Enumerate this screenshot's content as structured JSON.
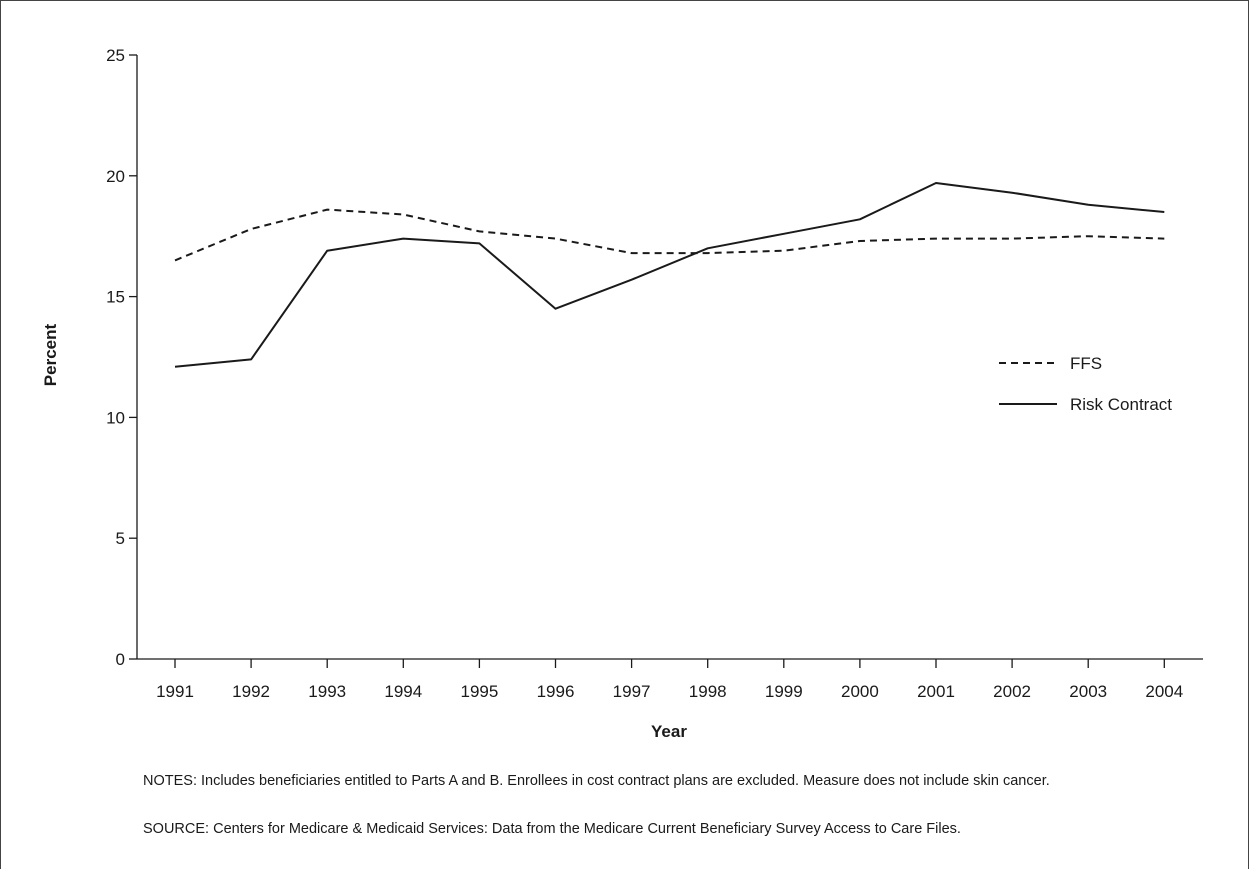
{
  "chart_data": {
    "type": "line",
    "xlabel": "Year",
    "ylabel": "Percent",
    "x": [
      "1991",
      "1992",
      "1993",
      "1994",
      "1995",
      "1996",
      "1997",
      "1998",
      "1999",
      "2000",
      "2001",
      "2002",
      "2003",
      "2004"
    ],
    "ylim": [
      0,
      25
    ],
    "yticks": [
      "0",
      "5",
      "10",
      "15",
      "20",
      "25"
    ],
    "grid": false,
    "legend_position": "right",
    "series": [
      {
        "name": "FFS",
        "style": "dashed",
        "color": "#1a1a1a",
        "values": [
          16.5,
          17.8,
          18.6,
          18.4,
          17.7,
          17.4,
          16.8,
          16.8,
          16.9,
          17.3,
          17.4,
          17.4,
          17.5,
          17.4
        ]
      },
      {
        "name": "Risk Contract",
        "style": "solid",
        "color": "#1a1a1a",
        "values": [
          12.1,
          12.4,
          16.9,
          17.4,
          17.2,
          14.5,
          15.7,
          17.0,
          17.6,
          18.2,
          19.7,
          19.3,
          18.8,
          18.5
        ]
      }
    ]
  },
  "footnotes": {
    "notes": "NOTES: Includes beneficiaries entitled to Parts A and B. Enrollees in cost contract plans are excluded. Measure does not include skin cancer.",
    "source": "SOURCE: Centers for Medicare & Medicaid Services: Data from the Medicare Current Beneficiary Survey Access to Care Files."
  }
}
